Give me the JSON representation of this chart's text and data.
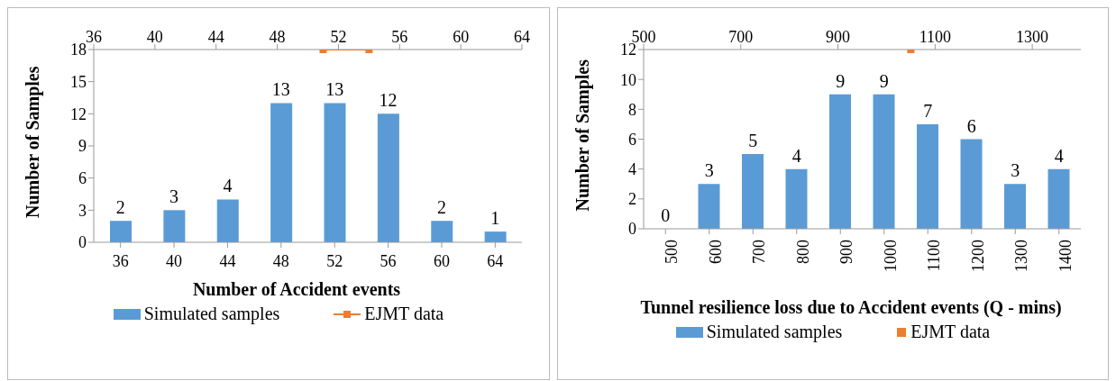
{
  "chart_data": [
    {
      "type": "bar",
      "xlabel": "Number of Accident events",
      "ylabel": "Number of Samples",
      "categories": [
        "36",
        "40",
        "44",
        "48",
        "52",
        "56",
        "60",
        "64"
      ],
      "series": [
        {
          "name": "Simulated samples",
          "color": "#5b9bd5",
          "values": [
            2,
            3,
            4,
            13,
            13,
            12,
            2,
            1
          ],
          "value_labels": [
            "2",
            "3",
            "4",
            "13",
            "13",
            "12",
            "2",
            "1"
          ]
        },
        {
          "name": "EJMT data",
          "type": "line",
          "axis": "x2",
          "color": "#ed7d31",
          "x": [
            51,
            54
          ],
          "values": [
            18,
            18
          ],
          "marker": "square"
        }
      ],
      "ylim": [
        0,
        18
      ],
      "yticks": [
        0,
        3,
        6,
        9,
        12,
        15,
        18
      ],
      "x2lim": [
        36,
        64
      ],
      "x2ticks": [
        36,
        40,
        44,
        48,
        52,
        56,
        60,
        64
      ],
      "legend": "bottom",
      "grid": false
    },
    {
      "type": "bar",
      "xlabel": "Tunnel resilience loss due to Accident events (Q - mins)",
      "ylabel": "Number of Samples",
      "categories": [
        "500",
        "600",
        "700",
        "800",
        "900",
        "1000",
        "1100",
        "1200",
        "1300",
        "1400"
      ],
      "series": [
        {
          "name": "Simulated samples",
          "color": "#5b9bd5",
          "values": [
            0,
            3,
            5,
            4,
            9,
            9,
            7,
            6,
            3,
            4
          ],
          "value_labels": [
            "0",
            "3",
            "5",
            "4",
            "9",
            "9",
            "7",
            "6",
            "3",
            "4"
          ]
        },
        {
          "name": "EJMT data",
          "type": "scatter",
          "axis": "x2",
          "color": "#ed7d31",
          "x": [
            1050
          ],
          "values": [
            12
          ],
          "marker": "square"
        }
      ],
      "ylim": [
        0,
        12
      ],
      "yticks": [
        0,
        2,
        4,
        6,
        8,
        10,
        12
      ],
      "x2lim": [
        500,
        1400
      ],
      "x2ticks": [
        500,
        700,
        900,
        1100,
        1300
      ],
      "legend": "bottom",
      "grid": false
    }
  ]
}
